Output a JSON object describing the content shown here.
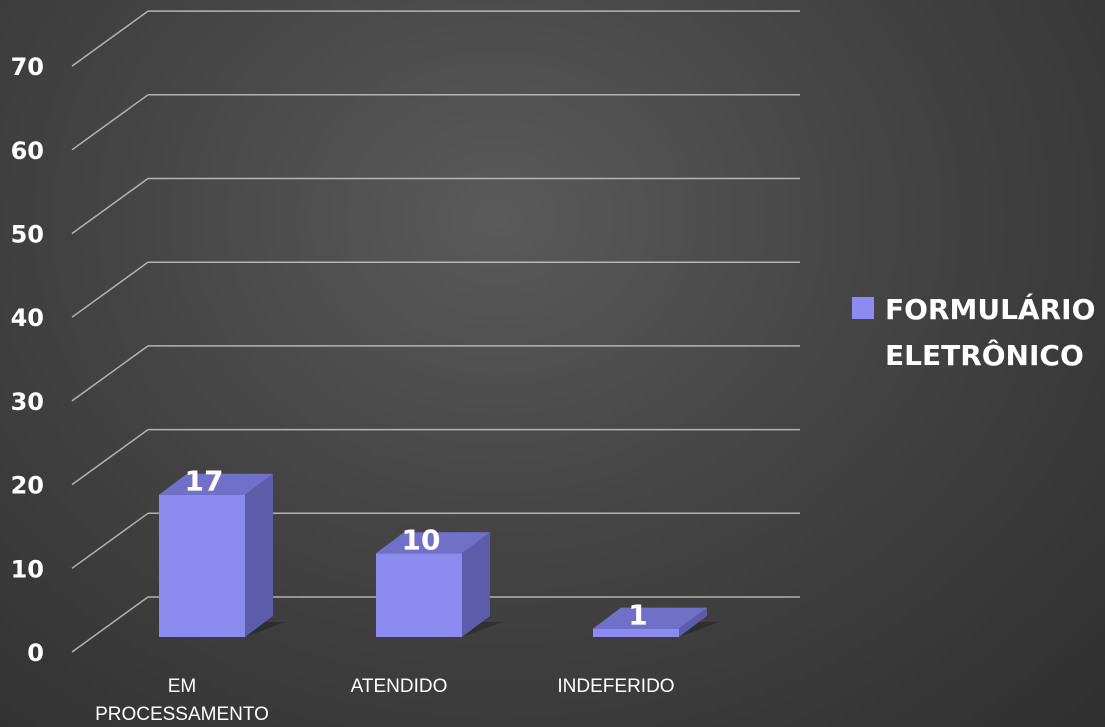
{
  "chart_data": {
    "type": "bar",
    "title": "",
    "xlabel": "",
    "ylabel": "",
    "categories": [
      "EM\nPROCESSAMENTO",
      "ATENDIDO",
      "INDEFERIDO"
    ],
    "series": [
      {
        "name": "FORMULÁRIO ELETRÔNICO",
        "values": [
          17,
          10,
          1
        ]
      }
    ],
    "ylim": [
      0,
      70
    ],
    "yticks": [
      "0",
      "10",
      "20",
      "30",
      "40",
      "50",
      "60",
      "70"
    ],
    "data_labels": [
      "17",
      "10",
      "1"
    ],
    "grid": true,
    "legend_position": "right",
    "colors": {
      "bar_front": "#8c8cf0",
      "bar_side": "#5c5cab",
      "bar_top": "#7070c8",
      "grid": "#d0d0d0"
    },
    "style": "3d-column"
  },
  "legend": {
    "label": "FORMULÁRIO\nELETRÔNICO",
    "swatch_color": "#8c8cf0"
  }
}
